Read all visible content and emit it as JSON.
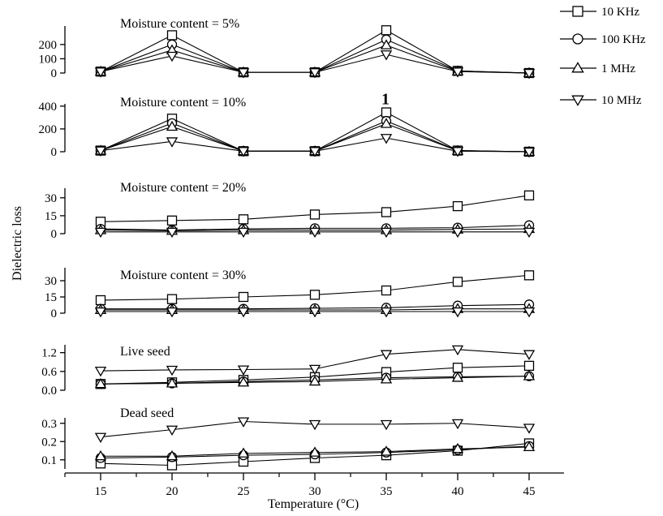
{
  "chart_data": [
    {
      "type": "line",
      "title": "Moisture content = 5%",
      "x": [
        15,
        20,
        25,
        30,
        35,
        40,
        45
      ],
      "ylim": [
        0,
        330
      ],
      "yticks": [
        0,
        100,
        200
      ],
      "yticklabels": [
        "0",
        "100",
        "200"
      ],
      "series": [
        {
          "name": "10 KHz",
          "values": [
            10,
            265,
            5,
            5,
            300,
            15,
            0
          ]
        },
        {
          "name": "100 KHz",
          "values": [
            10,
            200,
            5,
            5,
            235,
            15,
            0
          ]
        },
        {
          "name": "1 MHz",
          "values": [
            10,
            160,
            5,
            5,
            195,
            12,
            0
          ]
        },
        {
          "name": "10 MHz",
          "values": [
            10,
            120,
            5,
            5,
            130,
            10,
            0
          ]
        }
      ]
    },
    {
      "type": "line",
      "title": "Moisture content = 10%",
      "x": [
        15,
        20,
        25,
        30,
        35,
        40,
        45
      ],
      "ylim": [
        0,
        420
      ],
      "yticks": [
        0,
        200,
        400
      ],
      "yticklabels": [
        "0",
        "200",
        "400"
      ],
      "annotation": "1",
      "series": [
        {
          "name": "10 KHz",
          "values": [
            10,
            290,
            5,
            5,
            345,
            10,
            0
          ]
        },
        {
          "name": "100 KHz",
          "values": [
            10,
            250,
            5,
            5,
            270,
            10,
            0
          ]
        },
        {
          "name": "1 MHz",
          "values": [
            10,
            220,
            5,
            5,
            245,
            8,
            0
          ]
        },
        {
          "name": "10 MHz",
          "values": [
            10,
            90,
            5,
            5,
            120,
            5,
            0
          ]
        }
      ]
    },
    {
      "type": "line",
      "title": "Moisture content = 20%",
      "x": [
        15,
        20,
        25,
        30,
        35,
        40,
        45
      ],
      "ylim": [
        0,
        38
      ],
      "yticks": [
        0,
        15,
        30
      ],
      "yticklabels": [
        "0",
        "15",
        "30"
      ],
      "series": [
        {
          "name": "10 KHz",
          "values": [
            10,
            11,
            12,
            16,
            18,
            23,
            32
          ]
        },
        {
          "name": "100 KHz",
          "values": [
            4,
            3,
            4,
            4.5,
            4.5,
            5,
            7
          ]
        },
        {
          "name": "1 MHz",
          "values": [
            3,
            2.5,
            3,
            3,
            3,
            3.5,
            4
          ]
        },
        {
          "name": "10 MHz",
          "values": [
            1.5,
            1.5,
            1.5,
            1.5,
            1.5,
            1.5,
            1.5
          ]
        }
      ]
    },
    {
      "type": "line",
      "title": "Moisture content = 30%",
      "x": [
        15,
        20,
        25,
        30,
        35,
        40,
        45
      ],
      "ylim": [
        0,
        42
      ],
      "yticks": [
        0,
        15,
        30
      ],
      "yticklabels": [
        "0",
        "15",
        "30"
      ],
      "series": [
        {
          "name": "10 KHz",
          "values": [
            12,
            13,
            15,
            17,
            21,
            29,
            35
          ]
        },
        {
          "name": "100 KHz",
          "values": [
            4,
            4,
            4,
            4.5,
            5,
            7,
            8
          ]
        },
        {
          "name": "1 MHz",
          "values": [
            3,
            3,
            3,
            3,
            3,
            4,
            4
          ]
        },
        {
          "name": "10 MHz",
          "values": [
            1.5,
            1.5,
            1.5,
            1.5,
            1.5,
            1.5,
            1.5
          ]
        }
      ]
    },
    {
      "type": "line",
      "title": "Live seed",
      "x": [
        15,
        20,
        25,
        30,
        35,
        40,
        45
      ],
      "ylim": [
        0,
        1.45
      ],
      "yticks": [
        0,
        0.6,
        1.2
      ],
      "yticklabels": [
        "0.0",
        "0.6",
        "1.2"
      ],
      "series": [
        {
          "name": "10 KHz",
          "values": [
            0.2,
            0.25,
            0.33,
            0.42,
            0.58,
            0.72,
            0.78
          ]
        },
        {
          "name": "100 KHz",
          "values": [
            0.2,
            0.22,
            0.28,
            0.33,
            0.4,
            0.43,
            0.45
          ]
        },
        {
          "name": "1 MHz",
          "values": [
            0.2,
            0.22,
            0.25,
            0.28,
            0.35,
            0.4,
            0.45
          ]
        },
        {
          "name": "10 MHz",
          "values": [
            0.62,
            0.65,
            0.66,
            0.68,
            1.15,
            1.3,
            1.15
          ]
        }
      ]
    },
    {
      "type": "line",
      "title": "Dead seed",
      "x": [
        15,
        20,
        25,
        30,
        35,
        40,
        45
      ],
      "ylim": [
        0.05,
        0.33
      ],
      "yticks": [
        0.1,
        0.2,
        0.3
      ],
      "yticklabels": [
        "0.1",
        "0.2",
        "0.3"
      ],
      "series": [
        {
          "name": "10 KHz",
          "values": [
            0.08,
            0.07,
            0.09,
            0.11,
            0.125,
            0.15,
            0.19
          ]
        },
        {
          "name": "100 KHz",
          "values": [
            0.11,
            0.115,
            0.125,
            0.13,
            0.14,
            0.155,
            0.175
          ]
        },
        {
          "name": "1 MHz",
          "values": [
            0.12,
            0.12,
            0.135,
            0.14,
            0.145,
            0.16,
            0.17
          ]
        },
        {
          "name": "10 MHz",
          "values": [
            0.225,
            0.265,
            0.31,
            0.295,
            0.295,
            0.3,
            0.275
          ]
        }
      ]
    }
  ],
  "axes": {
    "xlabel": "Temperature (°C)",
    "ylabel": "Dielectric loss",
    "xticks": [
      15,
      20,
      25,
      30,
      35,
      40,
      45
    ],
    "xlim": [
      15,
      45
    ]
  },
  "legend": {
    "placement": "top-right",
    "entries": [
      {
        "name": "10 KHz",
        "marker": "square"
      },
      {
        "name": "100 KHz",
        "marker": "circle"
      },
      {
        "name": "1 MHz",
        "marker": "triangle-up"
      },
      {
        "name": "10 MHz",
        "marker": "triangle-down"
      }
    ]
  },
  "colors": {
    "line": "#000000",
    "background": "#ffffff"
  }
}
